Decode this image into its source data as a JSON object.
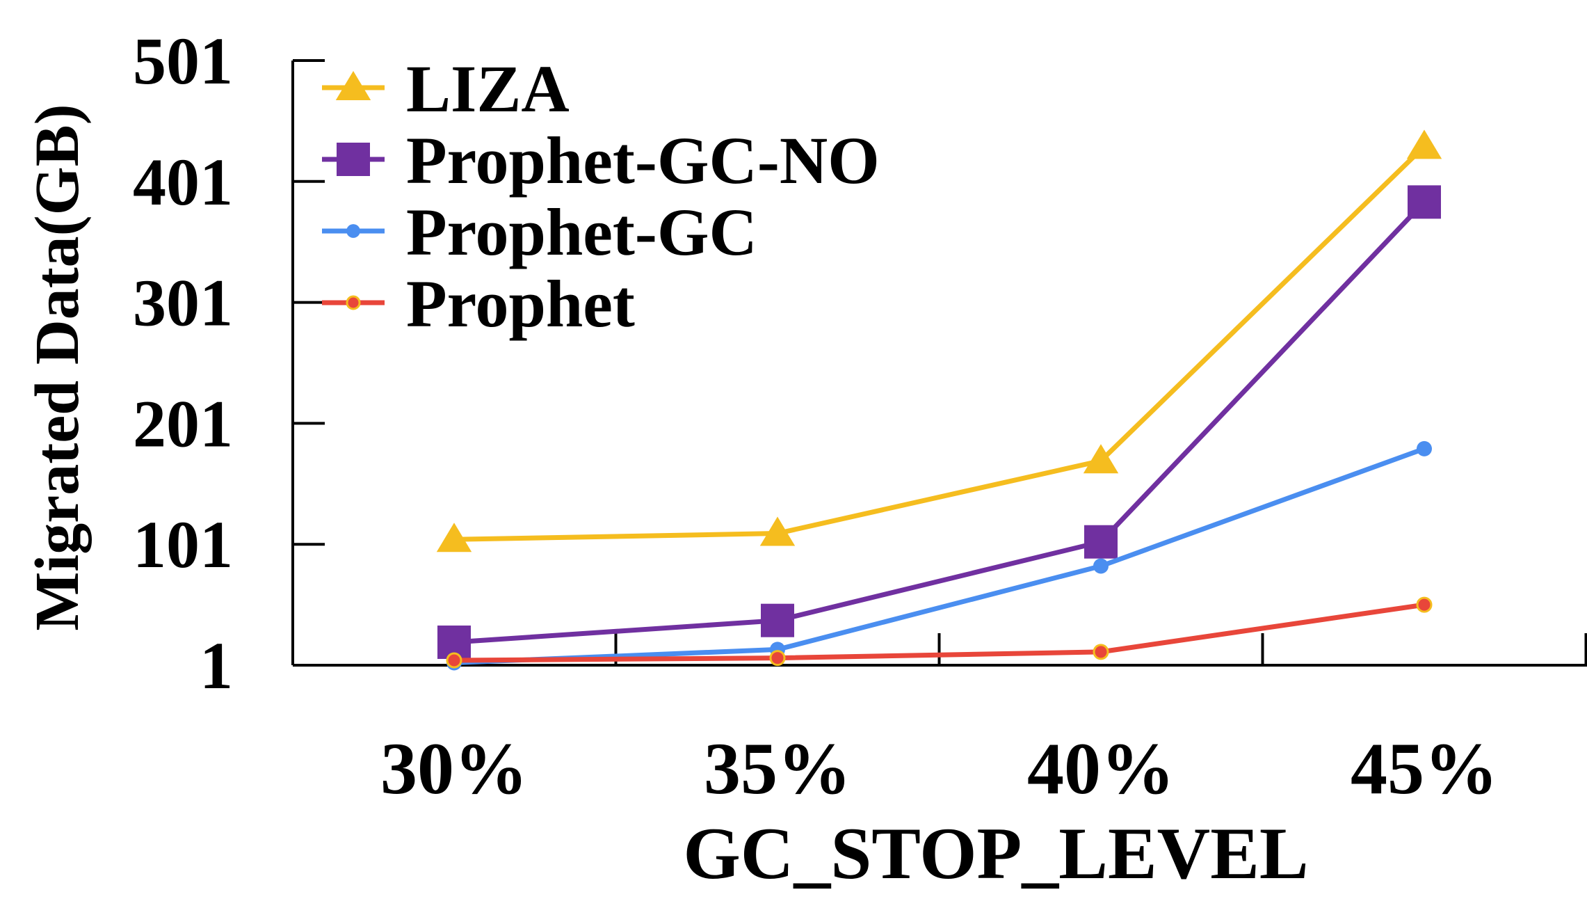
{
  "chart_data": {
    "type": "line",
    "title": "",
    "xlabel": "GC_STOP_LEVEL",
    "ylabel": "Migrated Data(GB)",
    "categories": [
      "30%",
      "35%",
      "40%",
      "45%"
    ],
    "y_ticks": [
      "1",
      "101",
      "201",
      "301",
      "401",
      "501"
    ],
    "ylim": [
      1,
      501
    ],
    "grid": false,
    "legend_position": "top-left",
    "series": [
      {
        "name": "LIZA",
        "values": [
          105,
          110,
          170,
          430
        ],
        "color": "#F5BD1F",
        "marker": "triangle"
      },
      {
        "name": "Prophet-GC-NO",
        "values": [
          20,
          38,
          103,
          384
        ],
        "color": "#7030A0",
        "marker": "square"
      },
      {
        "name": "Prophet-GC",
        "values": [
          3,
          14,
          83,
          180
        ],
        "color": "#4A8EF0",
        "marker": "circle"
      },
      {
        "name": "Prophet",
        "values": [
          5,
          7,
          12,
          51
        ],
        "color": "#E8463A",
        "marker": "dot-ring"
      }
    ]
  }
}
